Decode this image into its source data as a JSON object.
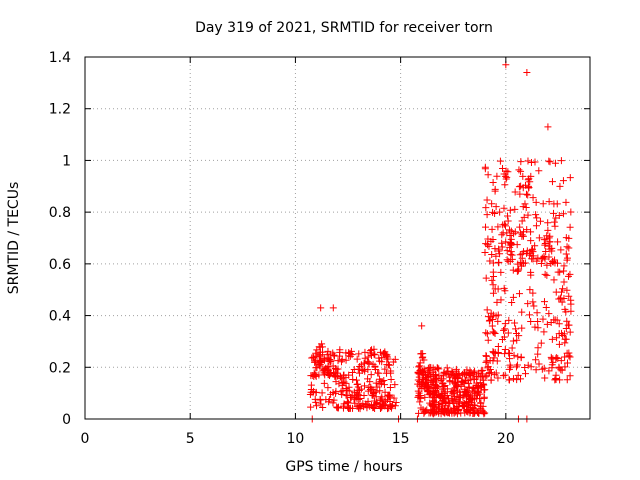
{
  "chart_data": {
    "type": "scatter",
    "title": "Day 319 of 2021, SRMTID for receiver torn",
    "xlabel": "GPS time / hours",
    "ylabel": "SRMTID / TECUs",
    "xlim": [
      0,
      24
    ],
    "ylim": [
      0,
      1.4
    ],
    "xticks": [
      0,
      5,
      10,
      15,
      20
    ],
    "yticks": [
      0,
      0.2,
      0.4,
      0.6,
      0.8,
      1,
      1.2,
      1.4
    ],
    "grid": true,
    "marker": "+",
    "color": "#ff0000",
    "clusters": [
      {
        "x_range": [
          10.7,
          14.8
        ],
        "y_low": 0.04,
        "y_high": 0.27,
        "n": 330,
        "peaks": [
          {
            "x": 11.2,
            "y": 0.43
          },
          {
            "x": 11.8,
            "y": 0.43
          }
        ]
      },
      {
        "x_range": [
          15.8,
          19.0
        ],
        "y_low": 0.02,
        "y_high": 0.2,
        "n": 420,
        "peaks": [
          {
            "x": 16.0,
            "y": 0.36
          }
        ]
      },
      {
        "x_range": [
          19.0,
          23.1
        ],
        "y_low": 0.15,
        "y_high": 1.0,
        "n": 420,
        "peaks": [
          {
            "x": 20.0,
            "y": 1.37
          },
          {
            "x": 21.0,
            "y": 1.34
          },
          {
            "x": 22.0,
            "y": 1.13
          }
        ]
      }
    ],
    "zero_points_x": [
      10.8,
      14.9,
      15.8,
      20.6,
      21.0
    ]
  }
}
